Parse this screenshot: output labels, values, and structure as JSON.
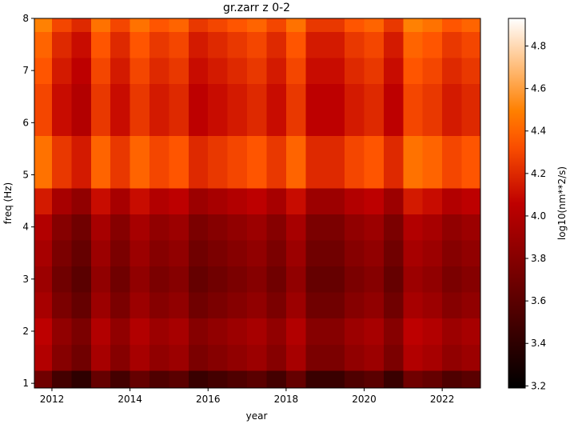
{
  "chart_data": {
    "type": "heatmap",
    "title": "gr.zarr z 0-2",
    "x_label": "year",
    "y_label": "freq (Hz)",
    "colormap": "gist_heat",
    "x": [
      2011.75,
      2012.25,
      2012.75,
      2013.25,
      2013.75,
      2014.25,
      2014.75,
      2015.25,
      2015.75,
      2016.25,
      2016.75,
      2017.25,
      2017.75,
      2018.25,
      2018.75,
      2019.25,
      2019.75,
      2020.25,
      2020.75,
      2021.25,
      2021.75,
      2022.25,
      2022.75
    ],
    "y": [
      1,
      1.5,
      2,
      2.5,
      3,
      3.5,
      4,
      4.5,
      5,
      5.5,
      6,
      6.5,
      7,
      7.5,
      8
    ],
    "z": [
      [
        3.7,
        3.5,
        3.4,
        3.65,
        3.5,
        3.65,
        3.55,
        3.6,
        3.45,
        3.5,
        3.55,
        3.6,
        3.5,
        3.65,
        3.45,
        3.45,
        3.55,
        3.6,
        3.45,
        3.7,
        3.65,
        3.55,
        3.6
      ],
      [
        4,
        3.8,
        3.7,
        3.95,
        3.8,
        3.95,
        3.85,
        3.9,
        3.75,
        3.8,
        3.85,
        3.9,
        3.8,
        3.95,
        3.75,
        3.75,
        3.85,
        3.9,
        3.75,
        4,
        3.95,
        3.85,
        3.9
      ],
      [
        4.05,
        3.85,
        3.75,
        4,
        3.85,
        4,
        3.9,
        3.95,
        3.8,
        3.85,
        3.9,
        3.95,
        3.85,
        4,
        3.8,
        3.8,
        3.9,
        3.95,
        3.8,
        4.05,
        4,
        3.9,
        3.95
      ],
      [
        3.95,
        3.75,
        3.65,
        3.9,
        3.75,
        3.9,
        3.8,
        3.85,
        3.7,
        3.75,
        3.8,
        3.85,
        3.75,
        3.9,
        3.7,
        3.7,
        3.8,
        3.85,
        3.7,
        3.95,
        3.9,
        3.8,
        3.85
      ],
      [
        3.9,
        3.7,
        3.6,
        3.85,
        3.7,
        3.85,
        3.75,
        3.8,
        3.65,
        3.7,
        3.75,
        3.8,
        3.7,
        3.85,
        3.65,
        3.65,
        3.75,
        3.8,
        3.65,
        3.9,
        3.85,
        3.75,
        3.8
      ],
      [
        3.95,
        3.75,
        3.65,
        3.9,
        3.75,
        3.9,
        3.8,
        3.85,
        3.7,
        3.75,
        3.8,
        3.85,
        3.75,
        3.9,
        3.7,
        3.7,
        3.8,
        3.85,
        3.7,
        3.95,
        3.9,
        3.8,
        3.85
      ],
      [
        4,
        3.8,
        3.7,
        3.95,
        3.8,
        3.95,
        3.85,
        3.9,
        3.75,
        3.8,
        3.85,
        3.9,
        3.8,
        3.95,
        3.75,
        3.75,
        3.85,
        3.9,
        3.75,
        4,
        3.95,
        3.85,
        3.9
      ],
      [
        4.15,
        3.95,
        3.85,
        4.1,
        3.95,
        4.1,
        4,
        4.05,
        3.9,
        3.95,
        4,
        4.05,
        3.95,
        4.1,
        3.9,
        3.9,
        4,
        4.05,
        3.9,
        4.15,
        4.1,
        4,
        4.05
      ],
      [
        4.45,
        4.25,
        4.15,
        4.4,
        4.25,
        4.4,
        4.3,
        4.35,
        4.2,
        4.25,
        4.3,
        4.35,
        4.25,
        4.4,
        4.2,
        4.2,
        4.3,
        4.35,
        4.2,
        4.45,
        4.4,
        4.3,
        4.35
      ],
      [
        4.45,
        4.25,
        4.15,
        4.4,
        4.25,
        4.4,
        4.3,
        4.35,
        4.2,
        4.25,
        4.3,
        4.35,
        4.25,
        4.4,
        4.2,
        4.2,
        4.3,
        4.35,
        4.2,
        4.45,
        4.4,
        4.3,
        4.35
      ],
      [
        4.3,
        4.1,
        4,
        4.25,
        4.1,
        4.25,
        4.15,
        4.2,
        4.05,
        4.1,
        4.15,
        4.2,
        4.1,
        4.25,
        4.05,
        4.05,
        4.15,
        4.2,
        4.05,
        4.3,
        4.25,
        4.15,
        4.2
      ],
      [
        4.3,
        4.1,
        4,
        4.25,
        4.1,
        4.25,
        4.15,
        4.2,
        4.05,
        4.1,
        4.15,
        4.2,
        4.1,
        4.25,
        4.05,
        4.05,
        4.15,
        4.2,
        4.05,
        4.3,
        4.25,
        4.15,
        4.2
      ],
      [
        4.35,
        4.15,
        4.05,
        4.3,
        4.15,
        4.3,
        4.2,
        4.25,
        4.1,
        4.15,
        4.2,
        4.25,
        4.15,
        4.3,
        4.1,
        4.1,
        4.2,
        4.25,
        4.1,
        4.35,
        4.3,
        4.2,
        4.25
      ],
      [
        4.4,
        4.2,
        4.1,
        4.35,
        4.2,
        4.35,
        4.25,
        4.3,
        4.15,
        4.2,
        4.25,
        4.3,
        4.2,
        4.35,
        4.15,
        4.15,
        4.25,
        4.3,
        4.15,
        4.4,
        4.35,
        4.25,
        4.3
      ],
      [
        4.5,
        4.3,
        4.2,
        4.45,
        4.3,
        4.45,
        4.35,
        4.4,
        4.25,
        4.3,
        4.35,
        4.4,
        4.3,
        4.45,
        4.25,
        4.25,
        4.35,
        4.4,
        4.25,
        4.5,
        4.45,
        4.35,
        4.4
      ]
    ],
    "xlim": [
      2011.55,
      2022.98
    ],
    "xticks": [
      2012,
      2014,
      2016,
      2018,
      2020,
      2022
    ],
    "ylim": [
      0.91,
      8
    ],
    "yticks": [
      1,
      2,
      3,
      4,
      5,
      6,
      7,
      8
    ],
    "colorbar": {
      "label": "log10(nm**2/s)",
      "clim": [
        3.19,
        4.93
      ],
      "ticks": [
        3.2,
        3.4,
        3.6,
        3.8,
        {
          "value": 4,
          "label": "4.0"
        },
        4.2,
        4.4,
        4.6,
        4.8
      ]
    }
  }
}
